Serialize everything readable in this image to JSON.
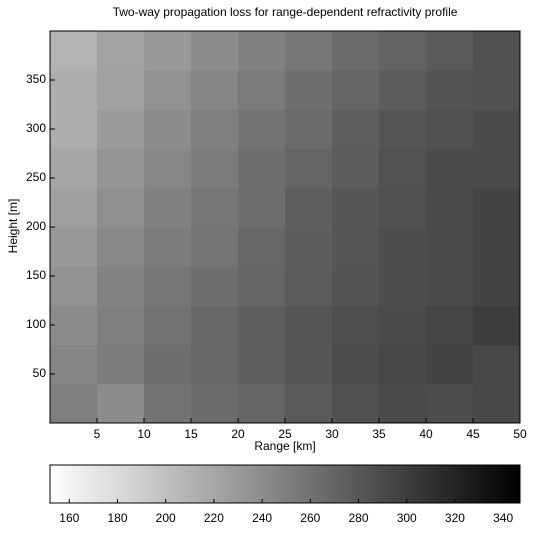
{
  "chart_data": {
    "type": "heatmap",
    "title": "Two-way propagation loss for range-dependent refractivity profile",
    "xlabel": "Range [km]",
    "ylabel": "Height [m]",
    "x_edges": [
      0,
      5,
      10,
      15,
      20,
      25,
      30,
      35,
      40,
      45,
      50
    ],
    "y_edges": [
      0,
      40,
      80,
      120,
      160,
      200,
      240,
      280,
      320,
      360,
      400
    ],
    "xlim": [
      0,
      50
    ],
    "ylim": [
      0,
      400
    ],
    "xticks": [
      5,
      10,
      15,
      20,
      25,
      30,
      35,
      40,
      45,
      50
    ],
    "yticks": [
      50,
      100,
      150,
      200,
      250,
      300,
      350
    ],
    "clim": [
      152,
      347
    ],
    "cticks": [
      160,
      180,
      200,
      220,
      240,
      260,
      280,
      300,
      320,
      340
    ],
    "z": [
      [
        250,
        240,
        260,
        265,
        270,
        278,
        285,
        290,
        288,
        292
      ],
      [
        245,
        252,
        262,
        268,
        275,
        282,
        288,
        293,
        295,
        292
      ],
      [
        240,
        250,
        260,
        268,
        275,
        282,
        287,
        290,
        294,
        300
      ],
      [
        235,
        247,
        257,
        263,
        270,
        277,
        283,
        288,
        290,
        295
      ],
      [
        230,
        243,
        252,
        258,
        268,
        276,
        282,
        288,
        290,
        295
      ],
      [
        225,
        238,
        248,
        257,
        264,
        275,
        281,
        285,
        290,
        295
      ],
      [
        220,
        233,
        244,
        252,
        262,
        270,
        277,
        284,
        290,
        290
      ],
      [
        215,
        228,
        240,
        250,
        259,
        265,
        275,
        282,
        285,
        290
      ],
      [
        215,
        224,
        235,
        245,
        253,
        262,
        270,
        277,
        283,
        285
      ],
      [
        210,
        222,
        230,
        240,
        248,
        257,
        265,
        271,
        278,
        285
      ]
    ]
  }
}
